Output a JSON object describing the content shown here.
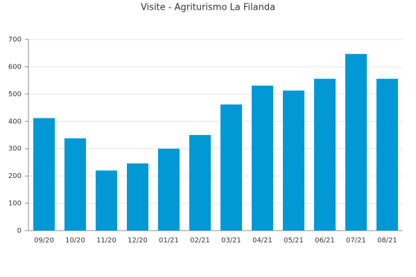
{
  "chart_data": {
    "type": "bar",
    "title": "Visite - Agriturismo La Filanda",
    "categories": [
      "09/20",
      "10/20",
      "11/20",
      "12/20",
      "01/21",
      "02/21",
      "03/21",
      "04/21",
      "05/21",
      "06/21",
      "07/21",
      "08/21"
    ],
    "values": [
      412,
      338,
      220,
      246,
      300,
      350,
      462,
      531,
      513,
      556,
      647,
      556
    ],
    "color": "#0099d6",
    "ylim": [
      0,
      700
    ],
    "yticks": [
      0,
      100,
      200,
      300,
      400,
      500,
      600,
      700
    ],
    "grid": true
  }
}
